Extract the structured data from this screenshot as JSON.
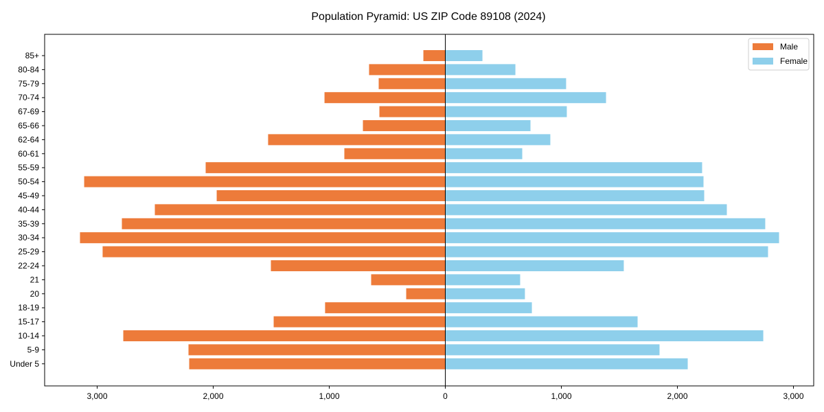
{
  "chart_data": {
    "type": "bar",
    "orientation": "horizontal-pyramid",
    "title": "Population Pyramid: US ZIP Code 89108 (2024)",
    "xlabel": "",
    "ylabel": "",
    "xlim": [
      -3450,
      3200
    ],
    "xticks": [
      -3000,
      -2000,
      -1000,
      0,
      1000,
      2000,
      3000
    ],
    "xtick_labels": [
      "3,000",
      "2,000",
      "1,000",
      "0",
      "1,000",
      "2,000",
      "3,000"
    ],
    "grid": false,
    "legend_position": "top-right",
    "categories": [
      "85+",
      "80-84",
      "75-79",
      "70-74",
      "67-69",
      "65-66",
      "62-64",
      "60-61",
      "55-59",
      "50-54",
      "45-49",
      "40-44",
      "35-39",
      "30-34",
      "25-29",
      "22-24",
      "21",
      "20",
      "18-19",
      "15-17",
      "10-14",
      "5-9",
      "Under 5"
    ],
    "series": [
      {
        "name": "Male",
        "color": "#ED7B3A",
        "values": [
          189,
          657,
          574,
          1041,
          568,
          710,
          1527,
          870,
          2065,
          3112,
          1970,
          2503,
          2787,
          3148,
          2953,
          1503,
          639,
          337,
          1036,
          1479,
          2775,
          2213,
          2207
        ]
      },
      {
        "name": "Female",
        "color": "#8ECFEB",
        "values": [
          320,
          604,
          1041,
          1385,
          1047,
          734,
          905,
          663,
          2213,
          2225,
          2231,
          2426,
          2757,
          2876,
          2781,
          1538,
          645,
          686,
          746,
          1657,
          2740,
          1846,
          2089
        ]
      }
    ]
  }
}
